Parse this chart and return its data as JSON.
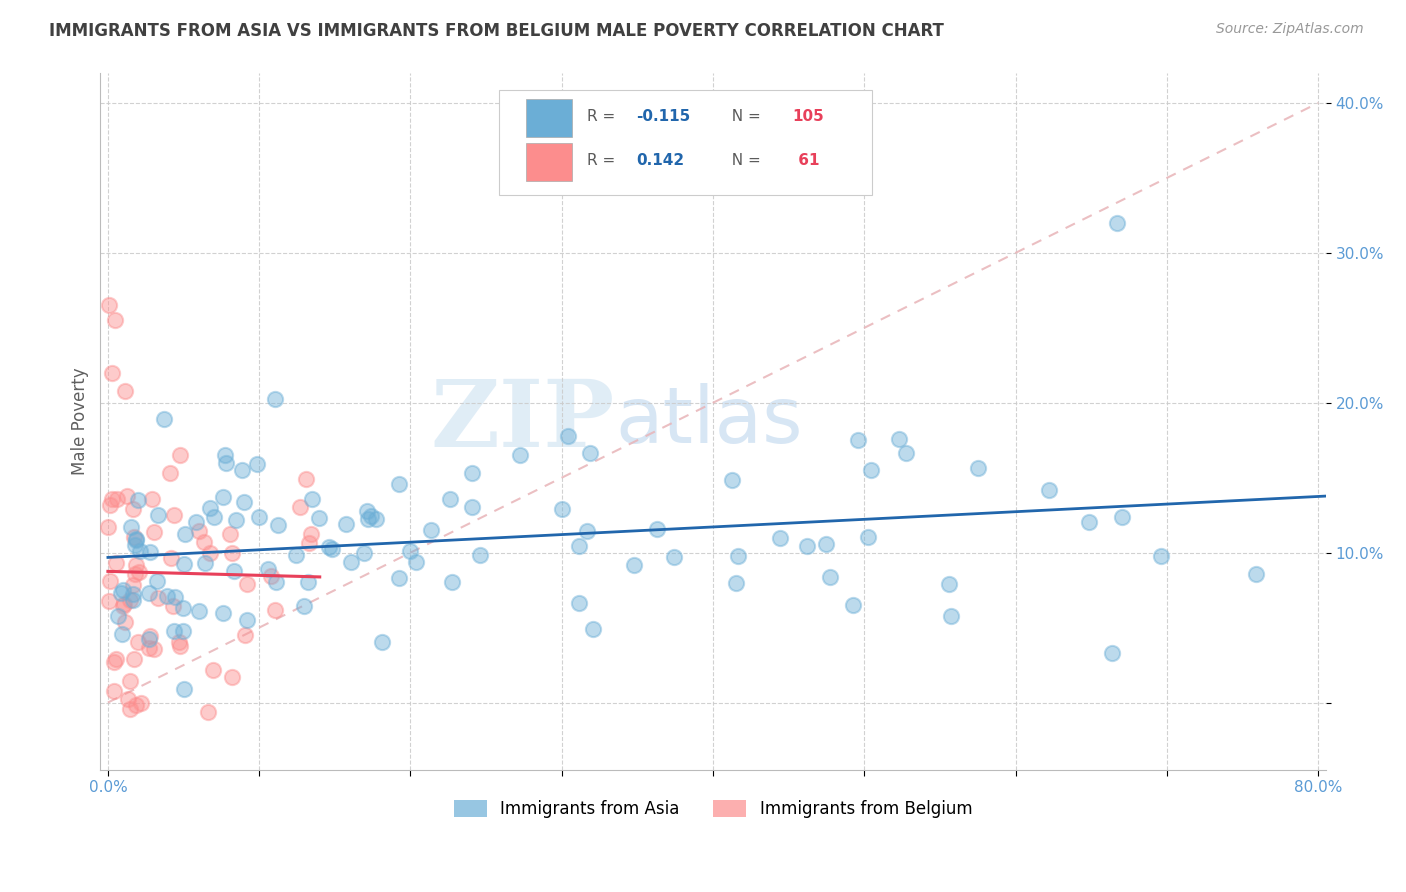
{
  "title": "IMMIGRANTS FROM ASIA VS IMMIGRANTS FROM BELGIUM MALE POVERTY CORRELATION CHART",
  "source": "Source: ZipAtlas.com",
  "ylabel": "Male Poverty",
  "xlim": [
    -0.005,
    0.805
  ],
  "ylim": [
    -0.045,
    0.42
  ],
  "xticks": [
    0.0,
    0.1,
    0.2,
    0.3,
    0.4,
    0.5,
    0.6,
    0.7,
    0.8
  ],
  "xticklabels": [
    "0.0%",
    "",
    "",
    "",
    "",
    "",
    "",
    "",
    "80.0%"
  ],
  "yticks": [
    0.0,
    0.1,
    0.2,
    0.3,
    0.4
  ],
  "yticklabels": [
    "",
    "10.0%",
    "20.0%",
    "30.0%",
    "40.0%"
  ],
  "asia_color": "#6baed6",
  "belgium_color": "#fc8d8d",
  "asia_trendline_color": "#2166ac",
  "belgium_trendline_color": "#e8405a",
  "refline_color": "#e8b4b8",
  "asia_R": -0.115,
  "asia_N": 105,
  "belgium_R": 0.142,
  "belgium_N": 61,
  "legend_label_asia": "Immigrants from Asia",
  "legend_label_belgium": "Immigrants from Belgium",
  "watermark_ZIP": "ZIP",
  "watermark_atlas": "atlas",
  "background_color": "#ffffff",
  "grid_color": "#cccccc",
  "title_color": "#404040",
  "axis_label_color": "#606060",
  "tick_label_color": "#5b9bd5",
  "legend_text_color": "#5b5b5b",
  "legend_value_color": "#2166ac",
  "legend_N_color": "#e8405a"
}
